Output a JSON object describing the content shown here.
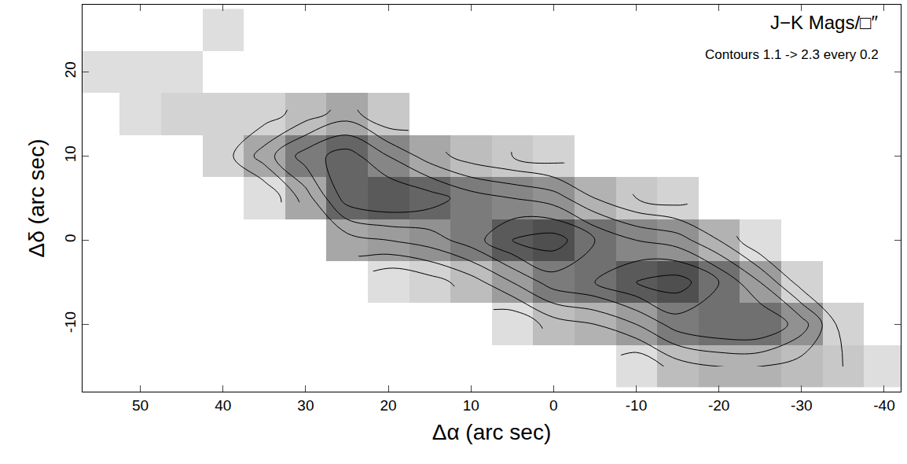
{
  "chart_data": {
    "type": "heatmap",
    "x_label": "Δα (arc sec)",
    "y_label": "Δδ (arc sec)",
    "annotations": [
      "J−K Mags/□″",
      "Contours 1.1 -> 2.3 every 0.2"
    ],
    "x": [
      -40,
      -35,
      -30,
      -25,
      -20,
      -15,
      -10,
      -5,
      0,
      5,
      10,
      15,
      20,
      25,
      30,
      35,
      40,
      45,
      50,
      55
    ],
    "y": [
      -15,
      -10,
      -5,
      0,
      5,
      10,
      15,
      20,
      25
    ],
    "z": [
      [
        0.9,
        1.1,
        1.2,
        1.3,
        1.3,
        1.2,
        0.9,
        null,
        null,
        null,
        null,
        null,
        null,
        null,
        null,
        null,
        null,
        null,
        null,
        null
      ],
      [
        null,
        1.0,
        1.6,
        1.9,
        1.9,
        1.8,
        1.5,
        1.3,
        1.2,
        0.9,
        null,
        null,
        null,
        null,
        null,
        null,
        null,
        null,
        null,
        null
      ],
      [
        null,
        null,
        1.0,
        1.5,
        1.9,
        2.2,
        2.1,
        1.9,
        1.8,
        1.5,
        1.2,
        1.0,
        0.9,
        null,
        null,
        null,
        null,
        null,
        null,
        null
      ],
      [
        null,
        null,
        null,
        0.9,
        1.3,
        1.6,
        1.7,
        1.9,
        2.2,
        2.1,
        1.8,
        1.6,
        1.5,
        1.4,
        null,
        null,
        null,
        null,
        null,
        null
      ],
      [
        null,
        null,
        null,
        null,
        null,
        1.0,
        1.1,
        1.3,
        1.6,
        1.7,
        1.8,
        2.0,
        2.1,
        2.0,
        1.4,
        0.9,
        null,
        null,
        null,
        null
      ],
      [
        null,
        null,
        null,
        null,
        null,
        null,
        null,
        null,
        1.0,
        1.1,
        1.2,
        1.4,
        1.7,
        2.0,
        1.8,
        1.4,
        1.0,
        null,
        null,
        null
      ],
      [
        null,
        null,
        null,
        null,
        null,
        null,
        null,
        null,
        null,
        null,
        null,
        null,
        1.1,
        1.4,
        1.2,
        1.0,
        1.0,
        1.0,
        0.9,
        null
      ],
      [
        null,
        null,
        null,
        null,
        null,
        null,
        null,
        null,
        null,
        null,
        null,
        null,
        null,
        null,
        null,
        null,
        null,
        0.9,
        0.9,
        0.9
      ],
      [
        null,
        null,
        null,
        null,
        null,
        null,
        null,
        null,
        null,
        null,
        null,
        null,
        null,
        null,
        null,
        null,
        0.9,
        null,
        null,
        null
      ]
    ],
    "contours": {
      "start": 1.1,
      "end": 2.3,
      "size": 0.2
    },
    "color_range": [
      0.6,
      2.5
    ],
    "xlim": [
      57,
      -42
    ],
    "xticks": [
      50,
      40,
      30,
      20,
      10,
      0,
      -10,
      -20,
      -30,
      -40
    ],
    "ylim": [
      -18,
      28
    ],
    "yticks": [
      -10,
      0,
      10,
      20
    ],
    "grid": false
  }
}
